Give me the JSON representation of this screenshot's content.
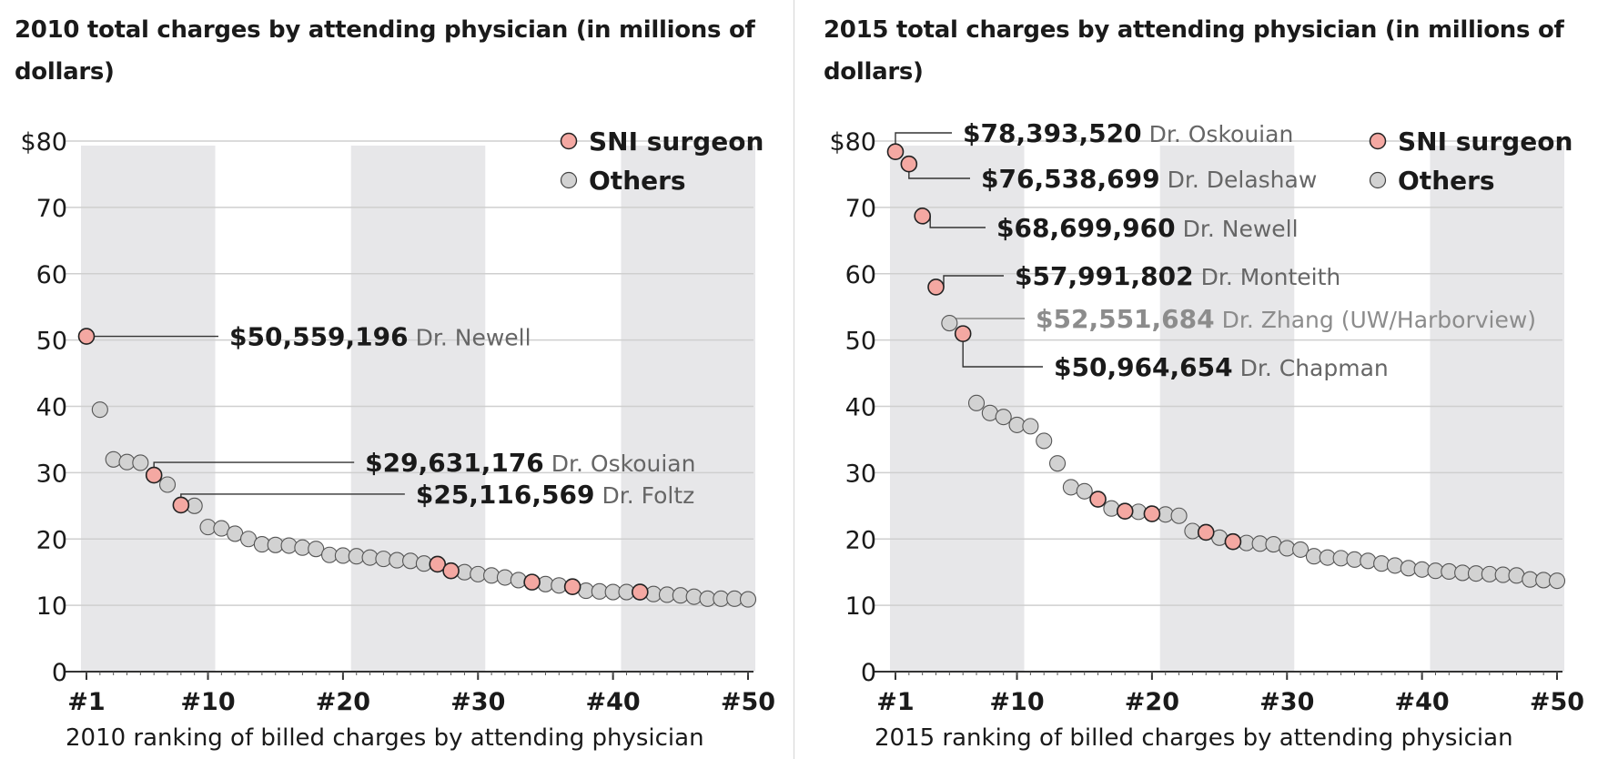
{
  "colors": {
    "sni": "#f4a8a2",
    "others": "#d2d2d2",
    "band": "#e7e7e9",
    "grid": "#cfcfcf",
    "text": "#1a1a1a",
    "label_gray": "#666666",
    "label_light": "#8c8c8c"
  },
  "legend": {
    "sni": "SNI surgeon",
    "others": "Others"
  },
  "chart_data": [
    {
      "type": "scatter",
      "title": "2010 total charges by attending physician (in millions of dollars)",
      "xlabel": "2010 ranking of billed charges by attending physician",
      "ylabel": "",
      "ylim": [
        0,
        80
      ],
      "xlim": [
        1,
        50
      ],
      "y_ticks": [
        "$80",
        "70",
        "60",
        "50",
        "40",
        "30",
        "20",
        "10",
        "0"
      ],
      "x_ticks": [
        "#1",
        "#10",
        "#20",
        "#30",
        "#40",
        "#50"
      ],
      "grid": true,
      "legend_position": "top-right",
      "shaded_rank_bands": [
        [
          1,
          10
        ],
        [
          21,
          30
        ],
        [
          41,
          50
        ]
      ],
      "series": [
        {
          "name": "SNI surgeon",
          "points": [
            [
              1,
              50.56
            ],
            [
              6,
              29.63
            ],
            [
              8,
              25.12
            ],
            [
              27,
              16.2
            ],
            [
              28,
              15.2
            ],
            [
              34,
              13.5
            ],
            [
              37,
              12.8
            ],
            [
              42,
              12.0
            ]
          ]
        },
        {
          "name": "Others",
          "points": [
            [
              2,
              39.5
            ],
            [
              3,
              32.0
            ],
            [
              4,
              31.6
            ],
            [
              5,
              31.5
            ],
            [
              7,
              28.2
            ],
            [
              9,
              25.0
            ],
            [
              10,
              21.8
            ],
            [
              11,
              21.6
            ],
            [
              12,
              20.8
            ],
            [
              13,
              20.0
            ],
            [
              14,
              19.2
            ],
            [
              15,
              19.1
            ],
            [
              16,
              19.0
            ],
            [
              17,
              18.7
            ],
            [
              18,
              18.5
            ],
            [
              19,
              17.6
            ],
            [
              20,
              17.5
            ],
            [
              21,
              17.4
            ],
            [
              22,
              17.2
            ],
            [
              23,
              17.0
            ],
            [
              24,
              16.8
            ],
            [
              25,
              16.7
            ],
            [
              26,
              16.3
            ],
            [
              29,
              15.0
            ],
            [
              30,
              14.7
            ],
            [
              31,
              14.5
            ],
            [
              32,
              14.2
            ],
            [
              33,
              13.8
            ],
            [
              35,
              13.2
            ],
            [
              36,
              13.0
            ],
            [
              38,
              12.2
            ],
            [
              39,
              12.1
            ],
            [
              40,
              12.0
            ],
            [
              41,
              12.0
            ],
            [
              43,
              11.7
            ],
            [
              44,
              11.6
            ],
            [
              45,
              11.5
            ],
            [
              46,
              11.3
            ],
            [
              47,
              11.0
            ],
            [
              48,
              11.0
            ],
            [
              49,
              11.0
            ],
            [
              50,
              10.9
            ]
          ]
        }
      ],
      "annotations": [
        {
          "rank": 1,
          "value": 50.56,
          "amount": "$50,559,196",
          "name": "Dr. Newell",
          "style": "sni"
        },
        {
          "rank": 6,
          "value": 29.63,
          "amount": "$29,631,176",
          "name": "Dr. Oskouian",
          "style": "sni"
        },
        {
          "rank": 8,
          "value": 25.12,
          "amount": "$25,116,569",
          "name": "Dr. Foltz",
          "style": "sni"
        }
      ]
    },
    {
      "type": "scatter",
      "title": "2015 total charges by attending physician (in millions of dollars)",
      "xlabel": "2015 ranking of billed charges by attending physician",
      "ylabel": "",
      "ylim": [
        0,
        80
      ],
      "xlim": [
        1,
        50
      ],
      "y_ticks": [
        "$80",
        "70",
        "60",
        "50",
        "40",
        "30",
        "20",
        "10",
        "0"
      ],
      "x_ticks": [
        "#1",
        "#10",
        "#20",
        "#30",
        "#40",
        "#50"
      ],
      "grid": true,
      "legend_position": "top-right",
      "shaded_rank_bands": [
        [
          1,
          10
        ],
        [
          21,
          30
        ],
        [
          41,
          50
        ]
      ],
      "series": [
        {
          "name": "SNI surgeon",
          "points": [
            [
              1,
              78.39
            ],
            [
              2,
              76.54
            ],
            [
              3,
              68.7
            ],
            [
              4,
              57.99
            ],
            [
              6,
              50.96
            ],
            [
              16,
              26.0
            ],
            [
              18,
              24.2
            ],
            [
              20,
              23.8
            ],
            [
              24,
              21.0
            ],
            [
              26,
              19.6
            ]
          ]
        },
        {
          "name": "Others",
          "points": [
            [
              5,
              52.55
            ],
            [
              7,
              40.5
            ],
            [
              8,
              39.0
            ],
            [
              9,
              38.4
            ],
            [
              10,
              37.2
            ],
            [
              11,
              37.0
            ],
            [
              12,
              34.8
            ],
            [
              13,
              31.4
            ],
            [
              14,
              27.8
            ],
            [
              15,
              27.2
            ],
            [
              17,
              24.6
            ],
            [
              19,
              24.1
            ],
            [
              21,
              23.7
            ],
            [
              22,
              23.5
            ],
            [
              23,
              21.2
            ],
            [
              25,
              20.2
            ],
            [
              27,
              19.4
            ],
            [
              28,
              19.3
            ],
            [
              29,
              19.2
            ],
            [
              30,
              18.6
            ],
            [
              31,
              18.4
            ],
            [
              32,
              17.4
            ],
            [
              33,
              17.2
            ],
            [
              34,
              17.1
            ],
            [
              35,
              16.9
            ],
            [
              36,
              16.7
            ],
            [
              37,
              16.3
            ],
            [
              38,
              16.0
            ],
            [
              39,
              15.6
            ],
            [
              40,
              15.4
            ],
            [
              41,
              15.2
            ],
            [
              42,
              15.1
            ],
            [
              43,
              14.9
            ],
            [
              44,
              14.8
            ],
            [
              45,
              14.7
            ],
            [
              46,
              14.6
            ],
            [
              47,
              14.5
            ],
            [
              48,
              13.9
            ],
            [
              49,
              13.8
            ],
            [
              50,
              13.7
            ]
          ]
        }
      ],
      "annotations": [
        {
          "rank": 1,
          "value": 78.39,
          "amount": "$78,393,520",
          "name": "Dr. Oskouian",
          "style": "sni"
        },
        {
          "rank": 2,
          "value": 76.54,
          "amount": "$76,538,699",
          "name": "Dr. Delashaw",
          "style": "sni"
        },
        {
          "rank": 3,
          "value": 68.7,
          "amount": "$68,699,960",
          "name": "Dr. Newell",
          "style": "sni"
        },
        {
          "rank": 4,
          "value": 57.99,
          "amount": "$57,991,802",
          "name": "Dr. Monteith",
          "style": "sni"
        },
        {
          "rank": 5,
          "value": 52.55,
          "amount": "$52,551,684",
          "name": "Dr. Zhang (UW/Harborview)",
          "style": "other"
        },
        {
          "rank": 6,
          "value": 50.96,
          "amount": "$50,964,654",
          "name": "Dr. Chapman",
          "style": "sni"
        }
      ]
    }
  ]
}
